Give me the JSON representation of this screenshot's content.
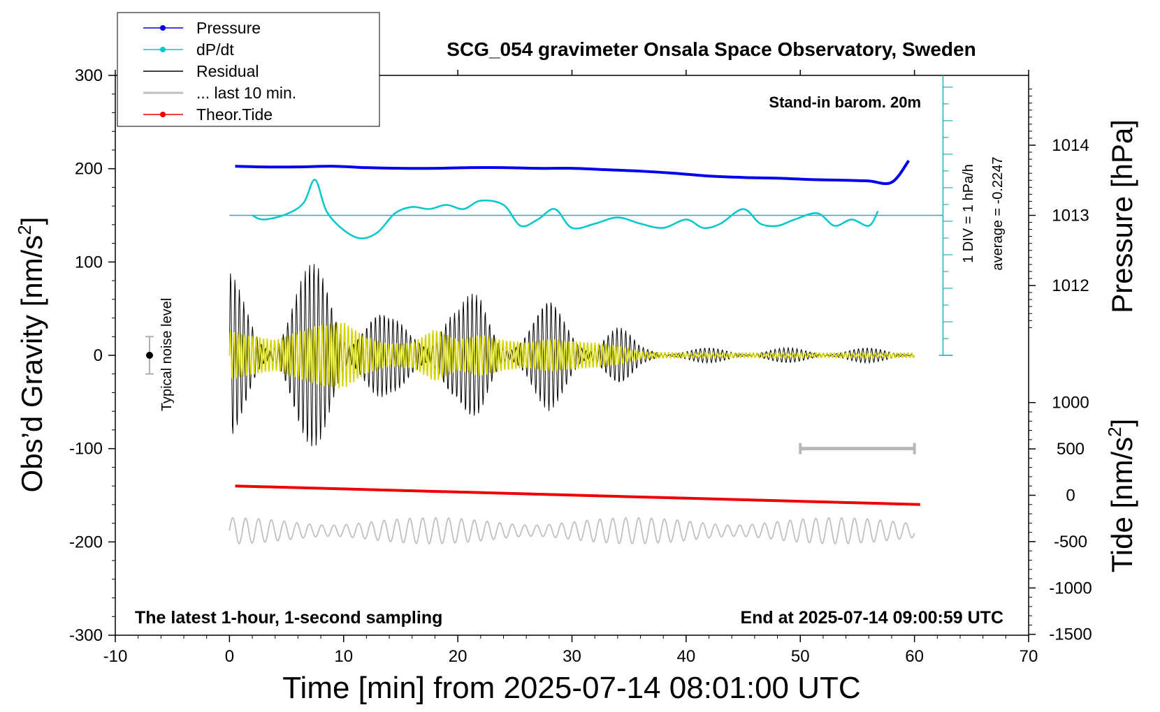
{
  "chart_data": {
    "type": "line",
    "title": "SCG_054 gravimeter Onsala Space Observatory, Sweden",
    "xlabel": "Time [min] from 2025-07-14 08:01:00 UTC",
    "ylabel_left": "Obs’d Gravity [nm/s²]",
    "ylabel_left_main": "Obs’d Gravity [nm/s",
    "ylabel_left_sup": "2",
    "ylabel_left_close": "]",
    "ylabel_right_top": "Pressure [hPa]",
    "ylabel_right_bottom": "Tide [nm/s²]",
    "ylabel_right_bottom_main": "Tide [nm/s",
    "ylabel_right_bottom_sup": "2",
    "ylabel_right_bottom_close": "]",
    "xlim": [
      -10,
      70
    ],
    "ylim_left": [
      -300,
      300
    ],
    "x_ticks": [
      "-10",
      "0",
      "10",
      "20",
      "30",
      "40",
      "50",
      "60",
      "70"
    ],
    "y_ticks_left": [
      "-300",
      "-200",
      "-100",
      "0",
      "100",
      "200",
      "300"
    ],
    "y_ticks_right_pressure": [
      "1012",
      "1013",
      "1014"
    ],
    "y_ticks_right_tide": [
      "-1500",
      "-1000",
      "-500",
      "0",
      "500",
      "1000"
    ],
    "legend": {
      "placement": "top-left",
      "entries": [
        {
          "label": "Pressure",
          "color": "#0000ee",
          "marker": true
        },
        {
          "label": "dP/dt",
          "color": "#00c8c8",
          "marker": true
        },
        {
          "label": "Residual",
          "color": "#000000",
          "marker": false
        },
        {
          "label": "... last 10 min.",
          "color": "#c0c0c0",
          "marker": false
        },
        {
          "label": "Theor.Tide",
          "color": "#ee0000",
          "marker": true
        }
      ]
    },
    "annotations": {
      "barometer": "Stand-in barom. 20m",
      "div_scale": "1 DIV = 1 hPa/h",
      "average": "average = -0.2247",
      "noise": "Typical noise level",
      "bottom_left": "The latest 1-hour, 1-second sampling",
      "bottom_right": "End at 2025-07-14 09:00:59 UTC"
    },
    "series": [
      {
        "name": "Pressure",
        "axis": "pressure_hPa",
        "color": "#0000ee",
        "x": [
          0.5,
          3,
          6,
          9,
          12,
          15,
          18,
          21,
          24,
          27,
          30,
          33,
          36,
          39,
          42,
          45,
          48,
          51,
          54,
          56,
          58,
          59.5
        ],
        "y": [
          1013.7,
          1013.69,
          1013.69,
          1013.7,
          1013.68,
          1013.67,
          1013.67,
          1013.68,
          1013.68,
          1013.67,
          1013.67,
          1013.65,
          1013.63,
          1013.6,
          1013.56,
          1013.54,
          1013.53,
          1013.51,
          1013.5,
          1013.49,
          1013.47,
          1013.78
        ]
      },
      {
        "name": "dP/dt",
        "axis": "pressure_rate",
        "color": "#00c8c8",
        "x": [
          2,
          3,
          5,
          6.5,
          7.5,
          8.5,
          10,
          11.5,
          13,
          14.5,
          16,
          17.5,
          19,
          20.5,
          22,
          24,
          25.5,
          27,
          28.5,
          30,
          32,
          34,
          36,
          38,
          40,
          41.5,
          43,
          45,
          46.5,
          48,
          49.5,
          51.5,
          53,
          54.5,
          56,
          56.8
        ],
        "y": [
          0,
          -0.1,
          0.03,
          0.3,
          0.85,
          0.1,
          -0.35,
          -0.55,
          -0.4,
          0.05,
          0.2,
          0.15,
          0.25,
          0.15,
          0.35,
          0.25,
          -0.25,
          -0.1,
          0.15,
          -0.3,
          -0.2,
          -0.05,
          -0.2,
          -0.3,
          -0.1,
          -0.3,
          -0.2,
          0.15,
          -0.2,
          -0.25,
          -0.1,
          0.05,
          -0.25,
          -0.1,
          -0.25,
          0.1
        ]
      },
      {
        "name": "Residual",
        "axis": "gravity",
        "color": "#000000",
        "x": [
          0,
          2,
          4,
          6,
          8,
          10,
          12,
          14,
          16,
          18,
          20,
          22,
          24,
          26,
          28,
          30,
          32,
          34,
          36,
          38,
          40,
          45,
          50,
          55,
          60
        ],
        "y": [
          90,
          70,
          55,
          85,
          110,
          120,
          65,
          40,
          45,
          95,
          55,
          75,
          55,
          45,
          60,
          50,
          45,
          35,
          12,
          10,
          8,
          8,
          8,
          8,
          8
        ]
      },
      {
        "name": "... last 10 min.",
        "axis": "gravity",
        "color": "#c0c0c0",
        "x": [
          0,
          10,
          20,
          30,
          40,
          50,
          60
        ],
        "y": [
          -188,
          -188,
          -188,
          -188,
          -188,
          -188,
          -188
        ]
      },
      {
        "name": "Theor.Tide",
        "axis": "tide",
        "color": "#ee0000",
        "x": [
          0.5,
          60.5
        ],
        "y": [
          100,
          -100
        ]
      }
    ],
    "noise_bar": {
      "x": -7,
      "y": 0,
      "halfrange": 20
    },
    "ten_min_bar": {
      "x_start": 50,
      "x_end": 60,
      "y": -100
    }
  }
}
